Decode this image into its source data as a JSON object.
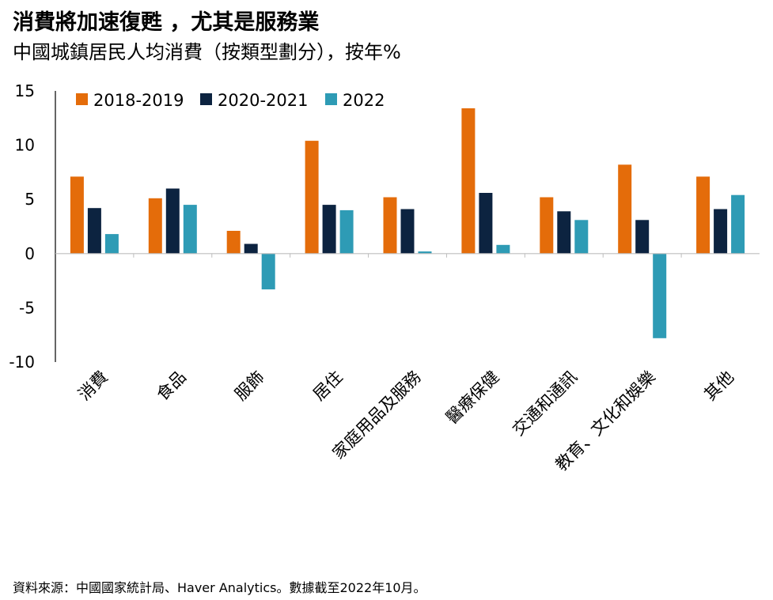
{
  "title": "消費將加速復甦 ，尤其是服務業",
  "subtitle": "中國城鎮居民人均消費（按類型劃分），按年%",
  "source": "資料來源：中國國家統計局、Haver Analytics。數據截至2022年10月。",
  "chart_data": {
    "type": "bar",
    "categories": [
      "消費",
      "食品",
      "服飾",
      "居住",
      "家庭用品及服務",
      "醫療保健",
      "交通和通訊",
      "教育、文化和娛樂",
      "其他"
    ],
    "series": [
      {
        "name": "2018-2019",
        "color": "#e46c0a",
        "values": [
          7.1,
          5.1,
          2.1,
          10.4,
          5.2,
          13.4,
          5.2,
          8.2,
          7.1
        ]
      },
      {
        "name": "2020-2021",
        "color": "#0c2340",
        "values": [
          4.2,
          6.0,
          0.9,
          4.5,
          4.1,
          5.6,
          3.9,
          3.1,
          4.1
        ]
      },
      {
        "name": "2022",
        "color": "#2e9bb5",
        "values": [
          1.8,
          4.5,
          -3.3,
          4.0,
          0.2,
          0.8,
          3.1,
          -7.8,
          5.4
        ]
      }
    ],
    "yticks": [
      15,
      10,
      5,
      0,
      -5,
      -10
    ],
    "ylim": [
      -10,
      15
    ],
    "legend_position": "top-left",
    "grid": false
  }
}
